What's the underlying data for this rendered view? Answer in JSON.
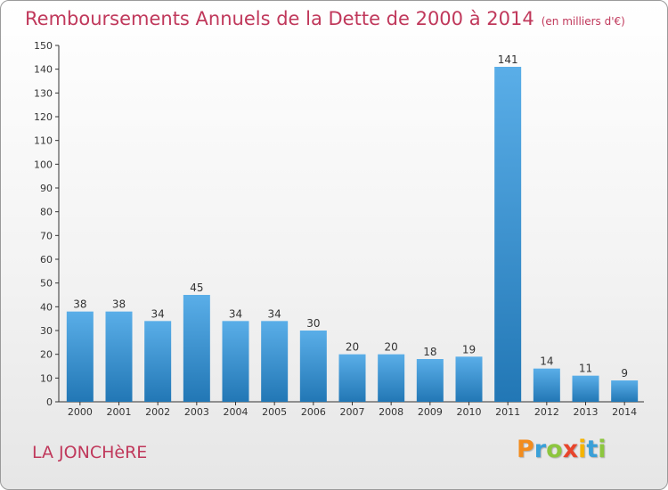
{
  "header": {
    "title": "Remboursements Annuels de la Dette de 2000 à 2014",
    "subtitle": "(en milliers d'€)"
  },
  "footer": {
    "commune": "LA JONCHèRE",
    "logo_letters": [
      {
        "char": "P",
        "color": "#f28c1e"
      },
      {
        "char": "r",
        "color": "#3aa0d8"
      },
      {
        "char": "o",
        "color": "#8dc63f"
      },
      {
        "char": "x",
        "color": "#e8452c"
      },
      {
        "char": "i",
        "color": "#f5b400"
      },
      {
        "char": "t",
        "color": "#3aa0d8"
      },
      {
        "char": "i",
        "color": "#8dc63f"
      }
    ]
  },
  "chart_data": {
    "type": "bar",
    "title": "Remboursements Annuels de la Dette de 2000 à 2014",
    "subtitle": "(en milliers d'€)",
    "categories": [
      "2000",
      "2001",
      "2002",
      "2003",
      "2004",
      "2005",
      "2006",
      "2007",
      "2008",
      "2009",
      "2010",
      "2011",
      "2012",
      "2013",
      "2014"
    ],
    "values": [
      38,
      38,
      34,
      45,
      34,
      34,
      30,
      20,
      20,
      18,
      19,
      141,
      14,
      11,
      9
    ],
    "ylim": [
      0,
      150
    ],
    "yticks": [
      0,
      10,
      20,
      30,
      40,
      50,
      60,
      70,
      80,
      90,
      100,
      110,
      120,
      130,
      140,
      150
    ],
    "grid": false,
    "bar_color_top": "#5aaee8",
    "bar_color_bottom": "#2277b5"
  }
}
